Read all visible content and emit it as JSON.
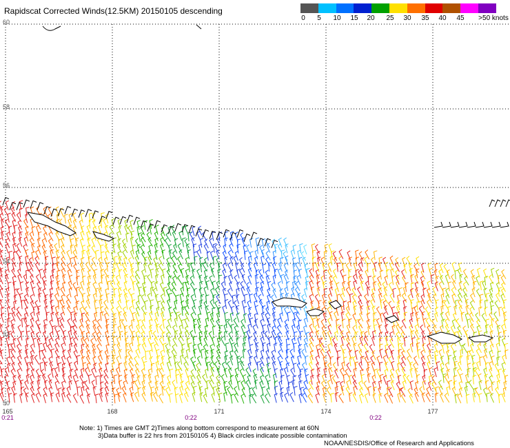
{
  "title": "Rapidscat Corrected Winds(12.5KM) 20150105 descending",
  "colorbar": {
    "colors": [
      "#555555",
      "#999999",
      "#00c0ff",
      "#0070ff",
      "#0020d0",
      "#00a000",
      "#30d000",
      "#ffe000",
      "#ffb000",
      "#ff7000",
      "#ff3000",
      "#e00000",
      "#b05000",
      "#d06060",
      "#ff00ff",
      "#c000ff",
      "#8000c0",
      "#400080"
    ],
    "labels": [
      "0",
      "5",
      "10",
      "15",
      "20",
      "25",
      "30",
      "35",
      "40",
      "45",
      ">50 knots"
    ]
  },
  "map": {
    "latitude_labels": [
      "60",
      "58",
      "56",
      "54",
      "52",
      "50"
    ],
    "longitude_labels": [
      "165",
      "168",
      "171",
      "174",
      "177"
    ],
    "time_labels": [
      "0:21",
      "0:22",
      "0:22"
    ]
  },
  "notes": [
    "Note: 1) Times are GMT 2)Times along bottom correspond to measurement at 60N",
    "3)Data buffer is 22 hrs from 20150105 4) Black circles indicate possible contamination",
    "NOAA/NESDIS/Office of Research and Applications"
  ]
}
